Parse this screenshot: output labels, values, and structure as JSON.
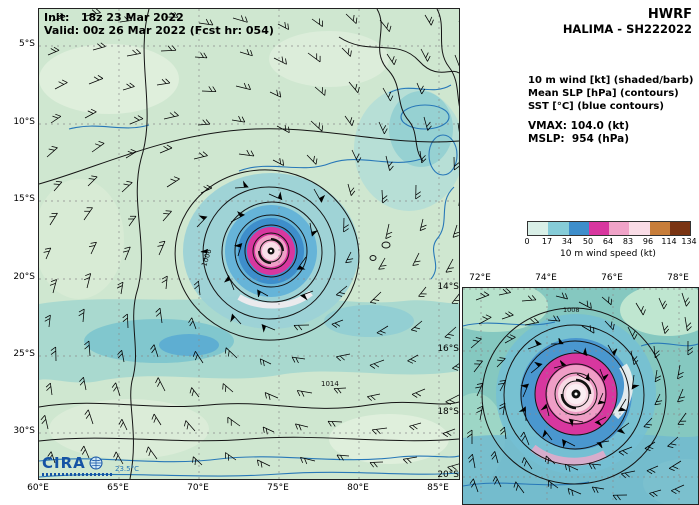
{
  "header": {
    "init_line": "Init:   18z 23 Mar 2022",
    "valid_line": "Valid: 00z 26 Mar 2022 (Fcst hr: 054)",
    "model": "HWRF",
    "storm": "HALIMA - SH222022",
    "legend_lines": [
      "10 m wind [kt] (shaded/barb)",
      "Mean SLP [hPa] (contours)",
      "SST [°C] (blue contours)"
    ]
  },
  "info": {
    "vmax_line": "VMAX: 104.0 (kt)",
    "mslp_line": "MSLP:  954 (hPa)"
  },
  "colorbar": {
    "ticks": [
      "0",
      "17",
      "34",
      "50",
      "64",
      "83",
      "96",
      "114",
      "134"
    ],
    "label": "10 m wind speed (kt)",
    "segment_colors": [
      "#d9efe7",
      "#86ccd8",
      "#3e8ecb",
      "#d8379f",
      "#f0a3c8",
      "#f9dce6",
      "#c87e3a",
      "#7a3413"
    ]
  },
  "main_map": {
    "lat_ticks": [
      "5°S",
      "10°S",
      "15°S",
      "20°S",
      "25°S",
      "30°S"
    ],
    "lon_ticks": [
      "60°E",
      "65°E",
      "70°E",
      "75°E",
      "80°E",
      "85°E"
    ],
    "labels": {
      "slp_inner": "1006",
      "slp_outer": "1014",
      "sst": "23.5°C"
    }
  },
  "inset_map": {
    "lon_ticks": [
      "72°E",
      "74°E",
      "76°E",
      "78°E"
    ],
    "lat_ticks": [
      "14°S",
      "16°S",
      "18°S",
      "20°S"
    ],
    "slp_label": "1008"
  },
  "logo": {
    "text": "CIRA"
  },
  "chart_data": {
    "type": "heatmap",
    "title": "HWRF HALIMA - SH222022",
    "field": "10 m wind speed (kt)",
    "x_axis": {
      "label": "longitude",
      "ticks": [
        "60°E",
        "65°E",
        "70°E",
        "75°E",
        "80°E",
        "85°E"
      ]
    },
    "y_axis": {
      "label": "latitude",
      "ticks": [
        "5°S",
        "10°S",
        "15°S",
        "20°S",
        "25°S",
        "30°S"
      ]
    },
    "colorbar": {
      "ticks": [
        0,
        17,
        34,
        50,
        64,
        83,
        96,
        114,
        134
      ],
      "label": "10 m wind speed (kt)"
    },
    "inset": {
      "x_ticks": [
        "72°E",
        "74°E",
        "76°E",
        "78°E"
      ],
      "y_ticks": [
        "14°S",
        "16°S",
        "18°S",
        "20°S"
      ]
    },
    "scalars": {
      "vmax_kt": 104.0,
      "mslp_hpa": 954,
      "init": "18z 23 Mar 2022",
      "valid": "00z 26 Mar 2022",
      "fcst_hr": 54
    },
    "contour_labels": {
      "slp": [
        "1006",
        "1014",
        "1008"
      ],
      "sst": [
        "23.5°C"
      ]
    },
    "storm_center_estimate": {
      "lon_e": 74.5,
      "lat_s": 18.2
    }
  }
}
